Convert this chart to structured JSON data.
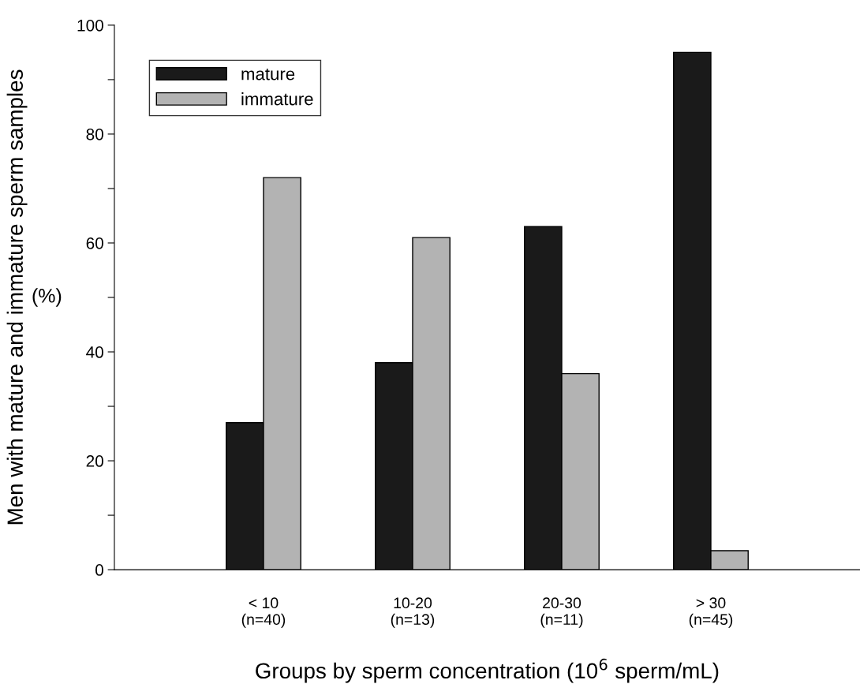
{
  "chart_data": {
    "type": "bar",
    "categories": [
      "< 10\n(n=40)",
      "10-20\n(n=13)",
      "20-30\n(n=11)",
      "> 30\n(n=45)"
    ],
    "series": [
      {
        "name": "mature",
        "color": "#1a1a1a",
        "values": [
          27,
          38,
          63,
          95
        ]
      },
      {
        "name": "immature",
        "color": "#b3b3b3",
        "values": [
          72,
          61,
          36,
          3.5
        ]
      }
    ],
    "ylabel": "Men with mature and immature sperm samples",
    "xlabel": "Groups by sperm concentration (10$^{6}$ sperm/mL)",
    "annotations": [
      "(%)"
    ],
    "ylim": [
      0,
      100
    ],
    "yticks": [
      0,
      {
        "value": 10,
        "label": null
      },
      20,
      {
        "value": 30,
        "label": null
      },
      40,
      {
        "value": 50,
        "label": null
      },
      60,
      {
        "value": 70,
        "label": null
      },
      80,
      {
        "value": 90,
        "label": null
      },
      100
    ],
    "legend": "top left",
    "grid": false
  }
}
